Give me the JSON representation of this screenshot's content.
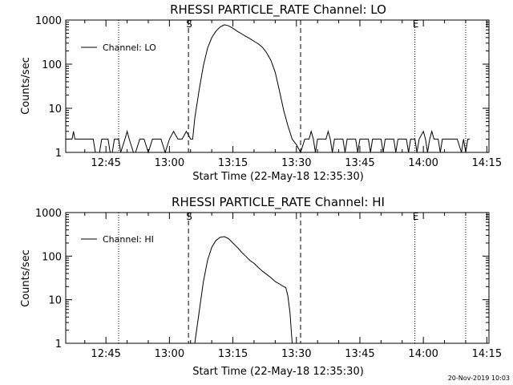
{
  "footer": {
    "timestamp": "20-Nov-2019 10:03"
  },
  "chart_data": [
    {
      "type": "line",
      "title": "RHESSI PARTICLE_RATE Channel: LO",
      "xlabel": "Start Time (22-May-18 12:35:30)",
      "ylabel": "Counts/sec",
      "y_scale": "log",
      "ylim": [
        1,
        1000
      ],
      "x_range": [
        "12:35:30",
        "14:15:30"
      ],
      "x_ticks": [
        "12:45",
        "13:00",
        "13:15",
        "13:30",
        "13:45",
        "14:00",
        "14:15"
      ],
      "y_ticks": [
        "1",
        "10",
        "100",
        "1000"
      ],
      "grid": false,
      "legend": {
        "placement": "top-left",
        "entries": [
          "Channel: LO"
        ]
      },
      "markers": [
        {
          "label": "",
          "time": "12:48:00",
          "style": "dotted"
        },
        {
          "label": "S",
          "time": "13:04:30",
          "style": "dashed"
        },
        {
          "label": "",
          "time": "13:31:00",
          "style": "dashed"
        },
        {
          "label": "E",
          "time": "13:58:00",
          "style": "dotted"
        },
        {
          "label": "",
          "time": "14:10:00",
          "style": "dotted"
        }
      ],
      "series": [
        {
          "name": "Channel: LO",
          "points": [
            [
              "12:36:00",
              2
            ],
            [
              "12:37:00",
              2
            ],
            [
              "12:37:20",
              3
            ],
            [
              "12:37:40",
              2
            ],
            [
              "12:38:30",
              2
            ],
            [
              "12:40:00",
              2
            ],
            [
              "12:42:00",
              2
            ],
            [
              "12:42:30",
              1
            ],
            [
              "12:43:30",
              1
            ],
            [
              "12:44:00",
              2
            ],
            [
              "12:45:30",
              2
            ],
            [
              "12:46:00",
              1
            ],
            [
              "12:46:30",
              1
            ],
            [
              "12:47:00",
              2
            ],
            [
              "12:48:00",
              2
            ],
            [
              "12:48:30",
              1
            ],
            [
              "12:49:30",
              2
            ],
            [
              "12:50:00",
              3
            ],
            [
              "12:50:30",
              2
            ],
            [
              "12:51:30",
              1
            ],
            [
              "12:52:00",
              1
            ],
            [
              "12:53:00",
              2
            ],
            [
              "12:54:00",
              2
            ],
            [
              "12:55:00",
              1
            ],
            [
              "12:56:00",
              2
            ],
            [
              "12:58:00",
              2
            ],
            [
              "12:59:00",
              1
            ],
            [
              "13:00:00",
              2
            ],
            [
              "13:01:00",
              3
            ],
            [
              "13:02:00",
              2
            ],
            [
              "13:03:00",
              2
            ],
            [
              "13:04:00",
              3
            ],
            [
              "13:05:00",
              2
            ],
            [
              "13:05:30",
              2
            ],
            [
              "13:06:00",
              6
            ],
            [
              "13:07:00",
              25
            ],
            [
              "13:08:00",
              90
            ],
            [
              "13:09:00",
              230
            ],
            [
              "13:10:00",
              400
            ],
            [
              "13:11:00",
              560
            ],
            [
              "13:12:00",
              700
            ],
            [
              "13:13:00",
              780
            ],
            [
              "13:14:00",
              740
            ],
            [
              "13:15:00",
              650
            ],
            [
              "13:16:00",
              560
            ],
            [
              "13:17:00",
              490
            ],
            [
              "13:18:00",
              430
            ],
            [
              "13:19:00",
              380
            ],
            [
              "13:20:00",
              330
            ],
            [
              "13:21:00",
              290
            ],
            [
              "13:22:00",
              240
            ],
            [
              "13:23:00",
              180
            ],
            [
              "13:24:00",
              120
            ],
            [
              "13:25:00",
              65
            ],
            [
              "13:26:00",
              25
            ],
            [
              "13:27:00",
              9
            ],
            [
              "13:28:00",
              4
            ],
            [
              "13:29:00",
              2
            ],
            [
              "13:30:00",
              1.5
            ],
            [
              "13:31:00",
              1
            ],
            [
              "13:32:00",
              2
            ],
            [
              "13:33:00",
              2
            ],
            [
              "13:33:30",
              3
            ],
            [
              "13:34:00",
              2
            ],
            [
              "13:34:30",
              1
            ],
            [
              "13:35:00",
              2
            ],
            [
              "13:37:00",
              2
            ],
            [
              "13:37:30",
              3
            ],
            [
              "13:38:00",
              2
            ],
            [
              "13:38:30",
              1
            ],
            [
              "13:39:00",
              2
            ],
            [
              "13:41:00",
              2
            ],
            [
              "13:41:30",
              1
            ],
            [
              "13:42:00",
              2
            ],
            [
              "13:44:00",
              2
            ],
            [
              "13:44:30",
              1
            ],
            [
              "13:45:00",
              2
            ],
            [
              "13:47:00",
              2
            ],
            [
              "13:47:30",
              1
            ],
            [
              "13:48:00",
              2
            ],
            [
              "13:50:00",
              2
            ],
            [
              "13:50:30",
              1
            ],
            [
              "13:51:00",
              2
            ],
            [
              "13:53:00",
              2
            ],
            [
              "13:53:30",
              1
            ],
            [
              "13:54:00",
              2
            ],
            [
              "13:56:00",
              2
            ],
            [
              "13:56:30",
              1
            ],
            [
              "13:57:00",
              2
            ],
            [
              "13:58:00",
              2
            ],
            [
              "13:58:30",
              1
            ],
            [
              "13:59:00",
              2
            ],
            [
              "14:00:00",
              3
            ],
            [
              "14:00:30",
              2
            ],
            [
              "14:01:00",
              1
            ],
            [
              "14:01:30",
              2
            ],
            [
              "14:02:00",
              3
            ],
            [
              "14:02:30",
              2
            ],
            [
              "14:03:30",
              2
            ],
            [
              "14:04:00",
              1
            ],
            [
              "14:04:30",
              2
            ],
            [
              "14:08:00",
              2
            ],
            [
              "14:09:00",
              1
            ],
            [
              "14:09:30",
              2
            ],
            [
              "14:10:00",
              1
            ],
            [
              "14:10:30",
              2
            ],
            [
              "14:11:00",
              2
            ]
          ]
        }
      ]
    },
    {
      "type": "line",
      "title": "RHESSI PARTICLE_RATE Channel: HI",
      "xlabel": "Start Time (22-May-18 12:35:30)",
      "ylabel": "Counts/sec",
      "y_scale": "log",
      "ylim": [
        1,
        1000
      ],
      "x_range": [
        "12:35:30",
        "14:15:30"
      ],
      "x_ticks": [
        "12:45",
        "13:00",
        "13:15",
        "13:30",
        "13:45",
        "14:00",
        "14:15"
      ],
      "y_ticks": [
        "1",
        "10",
        "100",
        "1000"
      ],
      "grid": false,
      "legend": {
        "placement": "top-left",
        "entries": [
          "Channel: HI"
        ]
      },
      "markers": [
        {
          "label": "",
          "time": "12:48:00",
          "style": "dotted"
        },
        {
          "label": "S",
          "time": "13:04:30",
          "style": "dashed"
        },
        {
          "label": "",
          "time": "13:31:00",
          "style": "dashed"
        },
        {
          "label": "E",
          "time": "13:58:00",
          "style": "dotted"
        },
        {
          "label": "",
          "time": "14:10:00",
          "style": "dotted"
        }
      ],
      "series": [
        {
          "name": "Channel: HI",
          "points": [
            [
              "13:06:00",
              1
            ],
            [
              "13:07:00",
              5
            ],
            [
              "13:08:00",
              25
            ],
            [
              "13:09:00",
              80
            ],
            [
              "13:10:00",
              160
            ],
            [
              "13:11:00",
              230
            ],
            [
              "13:12:00",
              270
            ],
            [
              "13:13:00",
              280
            ],
            [
              "13:14:00",
              250
            ],
            [
              "13:15:00",
              200
            ],
            [
              "13:16:00",
              160
            ],
            [
              "13:17:00",
              125
            ],
            [
              "13:18:00",
              100
            ],
            [
              "13:19:00",
              80
            ],
            [
              "13:20:00",
              68
            ],
            [
              "13:21:00",
              55
            ],
            [
              "13:22:00",
              45
            ],
            [
              "13:23:00",
              38
            ],
            [
              "13:24:00",
              32
            ],
            [
              "13:25:00",
              26
            ],
            [
              "13:26:00",
              23
            ],
            [
              "13:27:00",
              20
            ],
            [
              "13:27:30",
              19
            ],
            [
              "13:28:00",
              12
            ],
            [
              "13:28:30",
              5
            ],
            [
              "13:29:00",
              1
            ]
          ]
        }
      ]
    }
  ]
}
